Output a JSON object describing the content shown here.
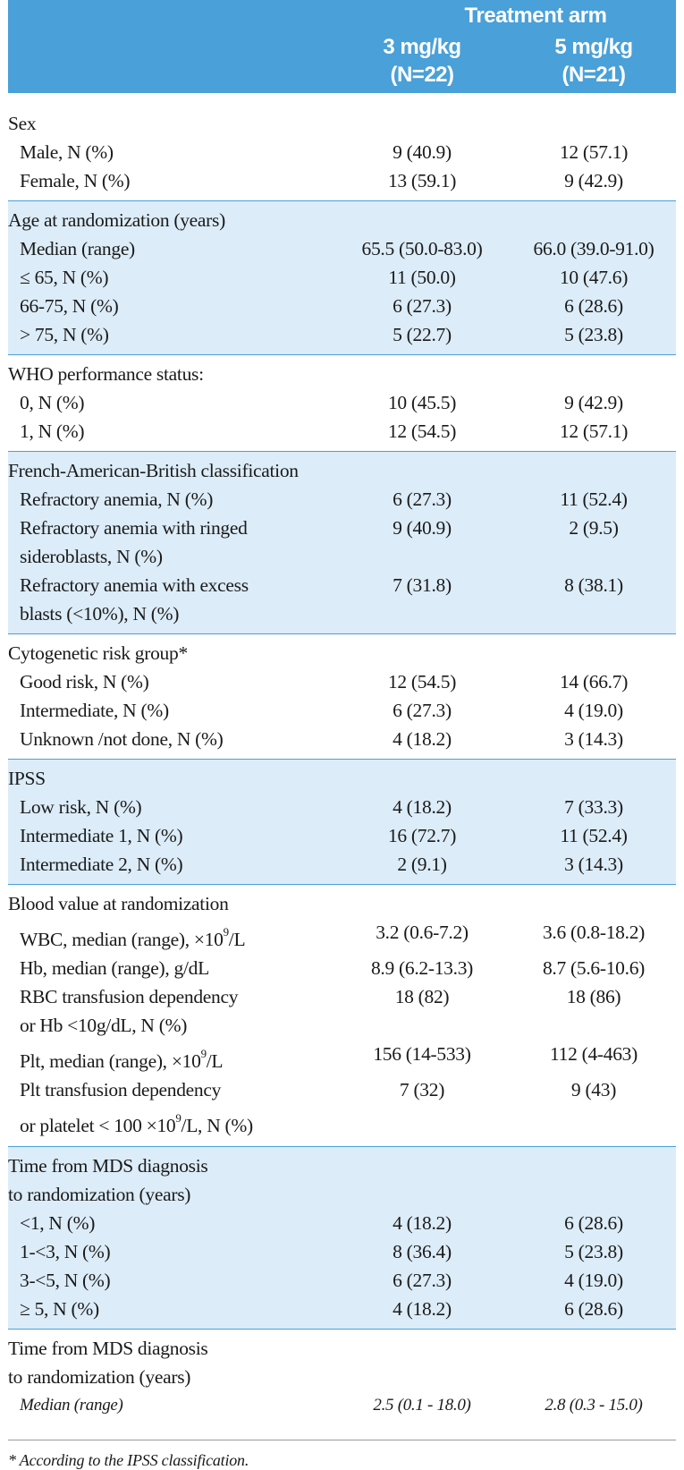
{
  "header": {
    "arm_title": "Treatment arm",
    "col1_line1": "3 mg/kg",
    "col1_line2": "(N=22)",
    "col2_line1": "5 mg/kg",
    "col2_line2": "(N=21)"
  },
  "sections": {
    "sex": {
      "title": "Sex",
      "rows": [
        {
          "label": "Male, N (%)",
          "v1": "9 (40.9)",
          "v2": "12 (57.1)"
        },
        {
          "label": "Female, N (%)",
          "v1": "13 (59.1)",
          "v2": "9 (42.9)"
        }
      ]
    },
    "age": {
      "title": "Age at randomization (years)",
      "rows": [
        {
          "label": "Median (range)",
          "v1": "65.5 (50.0-83.0)",
          "v2": "66.0 (39.0-91.0)"
        },
        {
          "label": "≤ 65, N (%)",
          "v1": "11 (50.0)",
          "v2": "10 (47.6)"
        },
        {
          "label": "66-75, N (%)",
          "v1": "6 (27.3)",
          "v2": "6 (28.6)"
        },
        {
          "label": "> 75, N (%)",
          "v1": "5 (22.7)",
          "v2": "5 (23.8)"
        }
      ]
    },
    "who": {
      "title": "WHO performance status:",
      "rows": [
        {
          "label": "0, N (%)",
          "v1": "10 (45.5)",
          "v2": "9 (42.9)"
        },
        {
          "label": "1, N (%)",
          "v1": "12 (54.5)",
          "v2": "12 (57.1)"
        }
      ]
    },
    "fab": {
      "title": "French-American-British classification",
      "rows": [
        {
          "label": "Refractory anemia, N (%)",
          "v1": "6 (27.3)",
          "v2": "11 (52.4)"
        },
        {
          "label": "Refractory anemia with ringed",
          "label2": "sideroblasts, N (%)",
          "v1": "9 (40.9)",
          "v2": "2 (9.5)"
        },
        {
          "label": "Refractory anemia with excess",
          "label2": "blasts (<10%), N (%)",
          "v1": "7 (31.8)",
          "v2": "8 (38.1)"
        }
      ]
    },
    "cyto": {
      "title": "Cytogenetic risk group*",
      "rows": [
        {
          "label": "Good risk, N (%)",
          "v1": "12 (54.5)",
          "v2": "14 (66.7)"
        },
        {
          "label": "Intermediate, N (%)",
          "v1": "6 (27.3)",
          "v2": "4 (19.0)"
        },
        {
          "label": "Unknown /not done, N (%)",
          "v1": "4 (18.2)",
          "v2": "3 (14.3)"
        }
      ]
    },
    "ipss": {
      "title": "IPSS",
      "rows": [
        {
          "label": "Low risk, N (%)",
          "v1": "4 (18.2)",
          "v2": "7 (33.3)"
        },
        {
          "label": "Intermediate 1, N (%)",
          "v1": "16 (72.7)",
          "v2": "11 (52.4)"
        },
        {
          "label": "Intermediate 2, N (%)",
          "v1": "2 (9.1)",
          "v2": "3 (14.3)"
        }
      ]
    },
    "blood": {
      "title": "Blood value at randomization",
      "wbc": {
        "label_pre": "WBC, median (range), ×10",
        "sup": "9",
        "label_post": "/L",
        "v1": "3.2 (0.6-7.2)",
        "v2": "3.6 (0.8-18.2)"
      },
      "hb": {
        "label": "Hb, median (range), g/dL",
        "v1": "8.9 (6.2-13.3)",
        "v2": "8.7 (5.6-10.6)"
      },
      "rbc": {
        "label": "RBC transfusion dependency",
        "label2": "or Hb <10g/dL, N (%)",
        "v1": "18 (82)",
        "v2": "18 (86)"
      },
      "plt": {
        "label_pre": "Plt, median (range), ×10",
        "sup": "9",
        "label_post": "/L",
        "v1": "156 (14-533)",
        "v2": "112 (4-463)"
      },
      "pltdep": {
        "label": "Plt transfusion dependency",
        "label2_pre": "or platelet < 100 ×10",
        "sup": "9",
        "label2_post": "/L, N (%)",
        "v1": "7 (32)",
        "v2": "9 (43)"
      }
    },
    "time1": {
      "title": "Time from MDS diagnosis",
      "title2": "to randomization (years)",
      "rows": [
        {
          "label": "<1, N (%)",
          "v1": "4 (18.2)",
          "v2": "6 (28.6)"
        },
        {
          "label": "1-<3, N (%)",
          "v1": "8 (36.4)",
          "v2": "5 (23.8)"
        },
        {
          "label": "3-<5, N (%)",
          "v1": "6 (27.3)",
          "v2": "4 (19.0)"
        },
        {
          "label": "≥ 5, N (%)",
          "v1": "4 (18.2)",
          "v2": "6 (28.6)"
        }
      ]
    },
    "time2": {
      "title": "Time from MDS diagnosis",
      "title2": "to randomization (years)",
      "rows": [
        {
          "label": "Median (range)",
          "v1": "2.5 (0.1 - 18.0)",
          "v2": "2.8 (0.3 - 15.0)"
        }
      ]
    }
  },
  "footnote": "* According to the IPSS classification."
}
